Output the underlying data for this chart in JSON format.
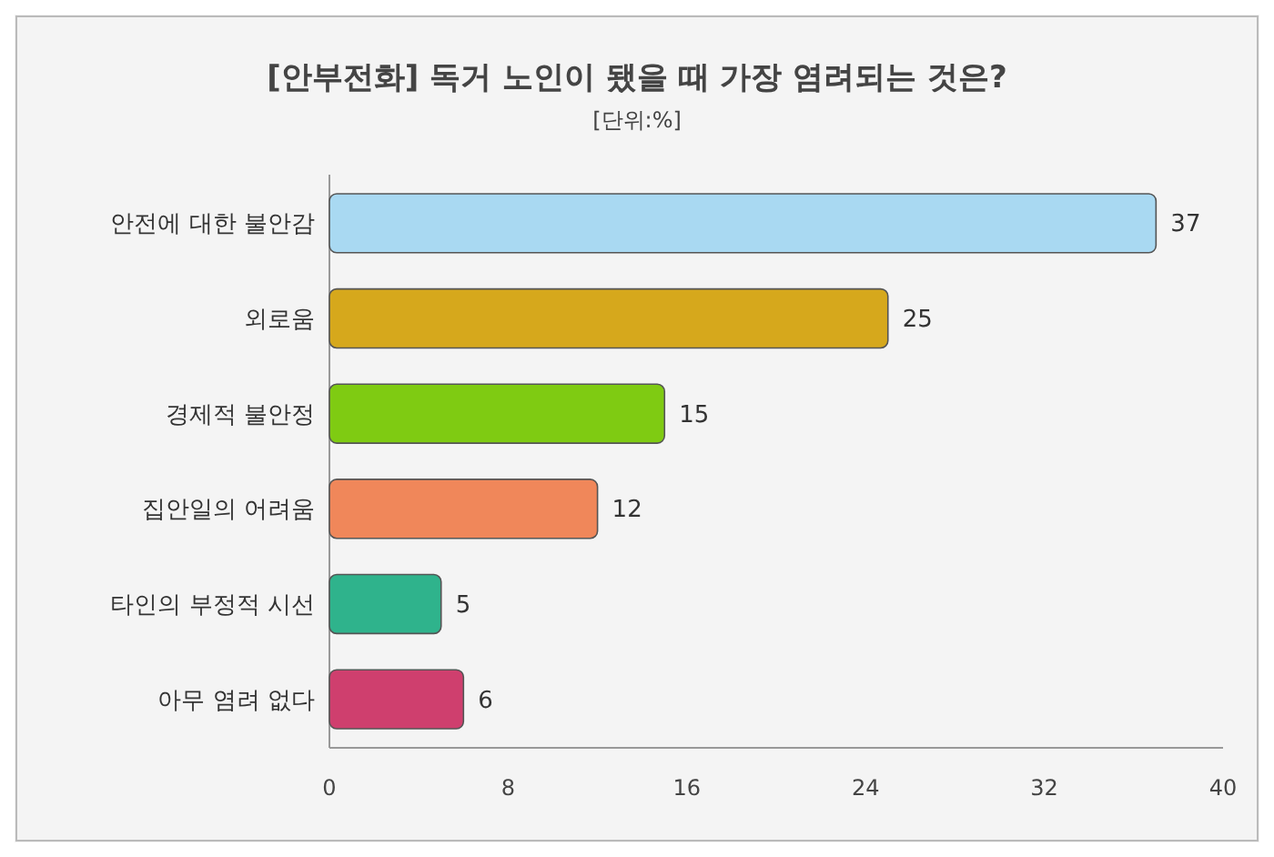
{
  "chart_data": {
    "type": "bar",
    "orientation": "horizontal",
    "title": "[안부전화] 독거 노인이 됐을 때 가장 염려되는 것은?",
    "subtitle": "[단위:%]",
    "categories": [
      "안전에 대한 불안감",
      "외로움",
      "경제적 불안정",
      "집안일의 어려움",
      "타인의 부정적 시선",
      "아무 염려 없다"
    ],
    "values": [
      37,
      25,
      15,
      12,
      5,
      6
    ],
    "colors": [
      "#a9d9f2",
      "#d6a81c",
      "#7fcb12",
      "#f0875a",
      "#2fb38c",
      "#cf3f6e"
    ],
    "xlim": [
      0,
      40
    ],
    "xticks": [
      0,
      8,
      16,
      24,
      32,
      40
    ],
    "data_labels": true,
    "grid": false
  }
}
